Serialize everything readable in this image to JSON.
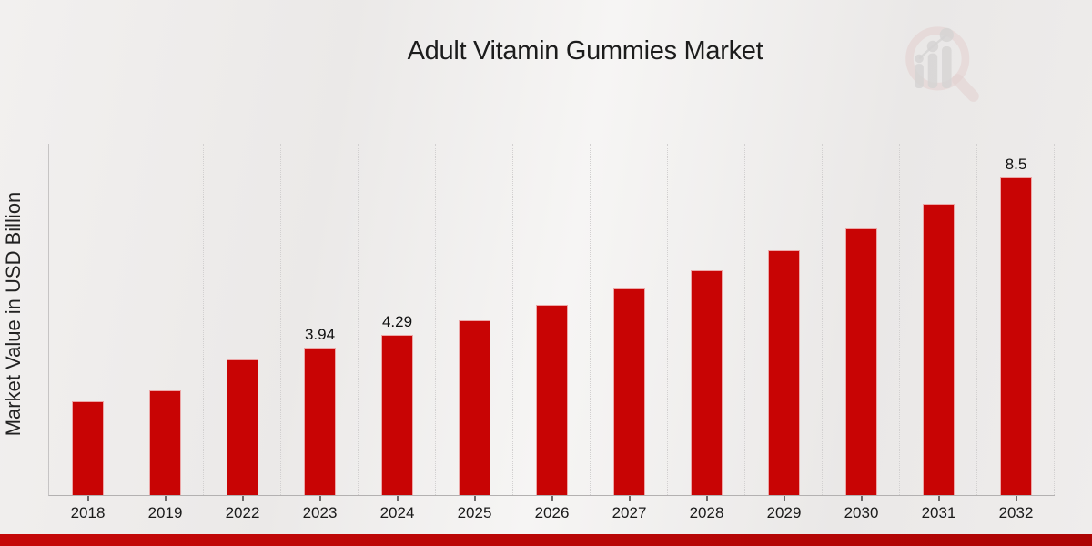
{
  "title": "Adult Vitamin Gummies Market",
  "y_axis_label": "Market Value in USD Billion",
  "logo": {
    "name": "magnifier-bar-chart-watermark",
    "ring_color": "#ddbebe",
    "bar_color": "#c6c4c4"
  },
  "colors": {
    "bar": "#c80404",
    "accent_strip": "#c00606",
    "axis": "#b3b1b1",
    "gridline": "#d2d0d0",
    "text": "#1c1c1c",
    "background_light": "#f6f5f4",
    "background_dark": "#eae8e7"
  },
  "chart_data": {
    "type": "bar",
    "title": "Adult Vitamin Gummies Market",
    "xlabel": "",
    "ylabel": "Market Value in USD Billion",
    "ylim": [
      0,
      9.4
    ],
    "grid": "vertical dotted separators between categories, no horizontal gridlines, no visible y-axis ticks",
    "legend": "none",
    "categories": [
      "2018",
      "2019",
      "2022",
      "2023",
      "2024",
      "2025",
      "2026",
      "2027",
      "2028",
      "2029",
      "2030",
      "2031",
      "2032"
    ],
    "values": [
      2.52,
      2.79,
      3.62,
      3.94,
      4.29,
      4.67,
      5.08,
      5.53,
      6.02,
      6.56,
      7.14,
      7.8,
      8.5
    ],
    "data_labels": {
      "2023": "3.94",
      "2024": "4.29",
      "2032": "8.5"
    }
  }
}
